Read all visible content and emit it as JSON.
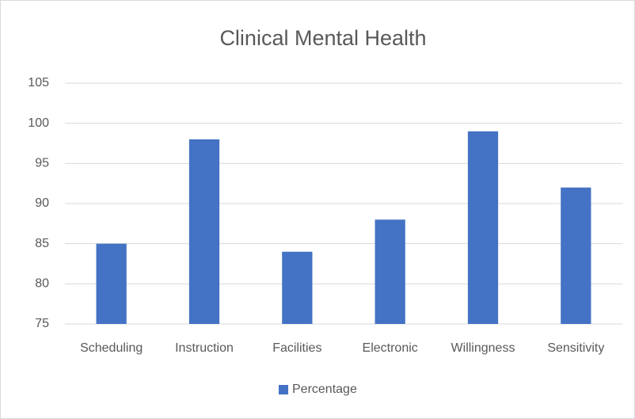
{
  "chart_data": {
    "type": "bar",
    "title": "Clinical Mental Health",
    "categories": [
      "Scheduling",
      "Instruction",
      "Facilities",
      "Electronic",
      "Willingness",
      "Sensitivity"
    ],
    "series": [
      {
        "name": "Percentage",
        "color": "#4472c4",
        "values": [
          85,
          98,
          84,
          88,
          99,
          92
        ]
      }
    ],
    "ylim": [
      75,
      105
    ],
    "yticks": [
      75,
      80,
      85,
      90,
      95,
      100,
      105
    ],
    "grid": true,
    "legend": "bottom"
  }
}
